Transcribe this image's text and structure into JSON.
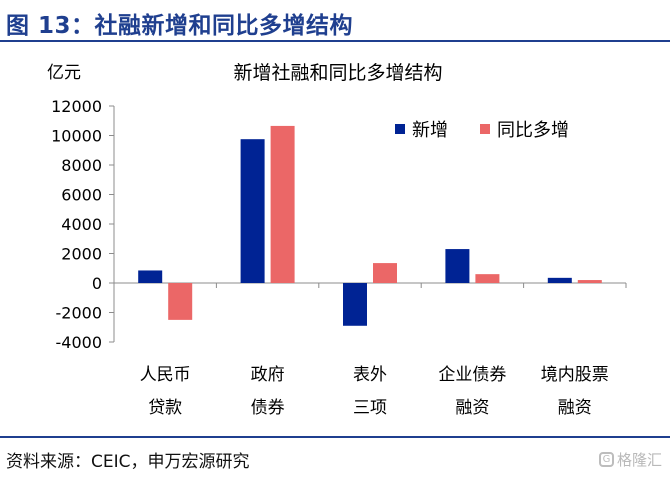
{
  "figure_title": "图 13：社融新增和同比多增结构",
  "source_note": "资料来源：CEIC，申万宏源研究",
  "watermark": "格隆汇",
  "chart_data": {
    "type": "bar",
    "title": "新增社融和同比多增结构",
    "unit_label": "亿元",
    "categories": [
      [
        "人民币",
        "贷款"
      ],
      [
        "政府",
        "债券"
      ],
      [
        "表外",
        "三项"
      ],
      [
        "企业债券",
        "融资"
      ],
      [
        "境内股票",
        "融资"
      ]
    ],
    "series": [
      {
        "name": "新增",
        "color": "#002394",
        "values": [
          850,
          9750,
          -2900,
          2300,
          350
        ]
      },
      {
        "name": "同比多增",
        "color": "#eb6767",
        "values": [
          -2500,
          10650,
          1350,
          600,
          200
        ]
      }
    ],
    "ylim": [
      -4000,
      12000
    ],
    "yticks": [
      -4000,
      -2000,
      0,
      2000,
      4000,
      6000,
      8000,
      10000,
      12000
    ],
    "legend_position": "top-right",
    "grid": false
  }
}
